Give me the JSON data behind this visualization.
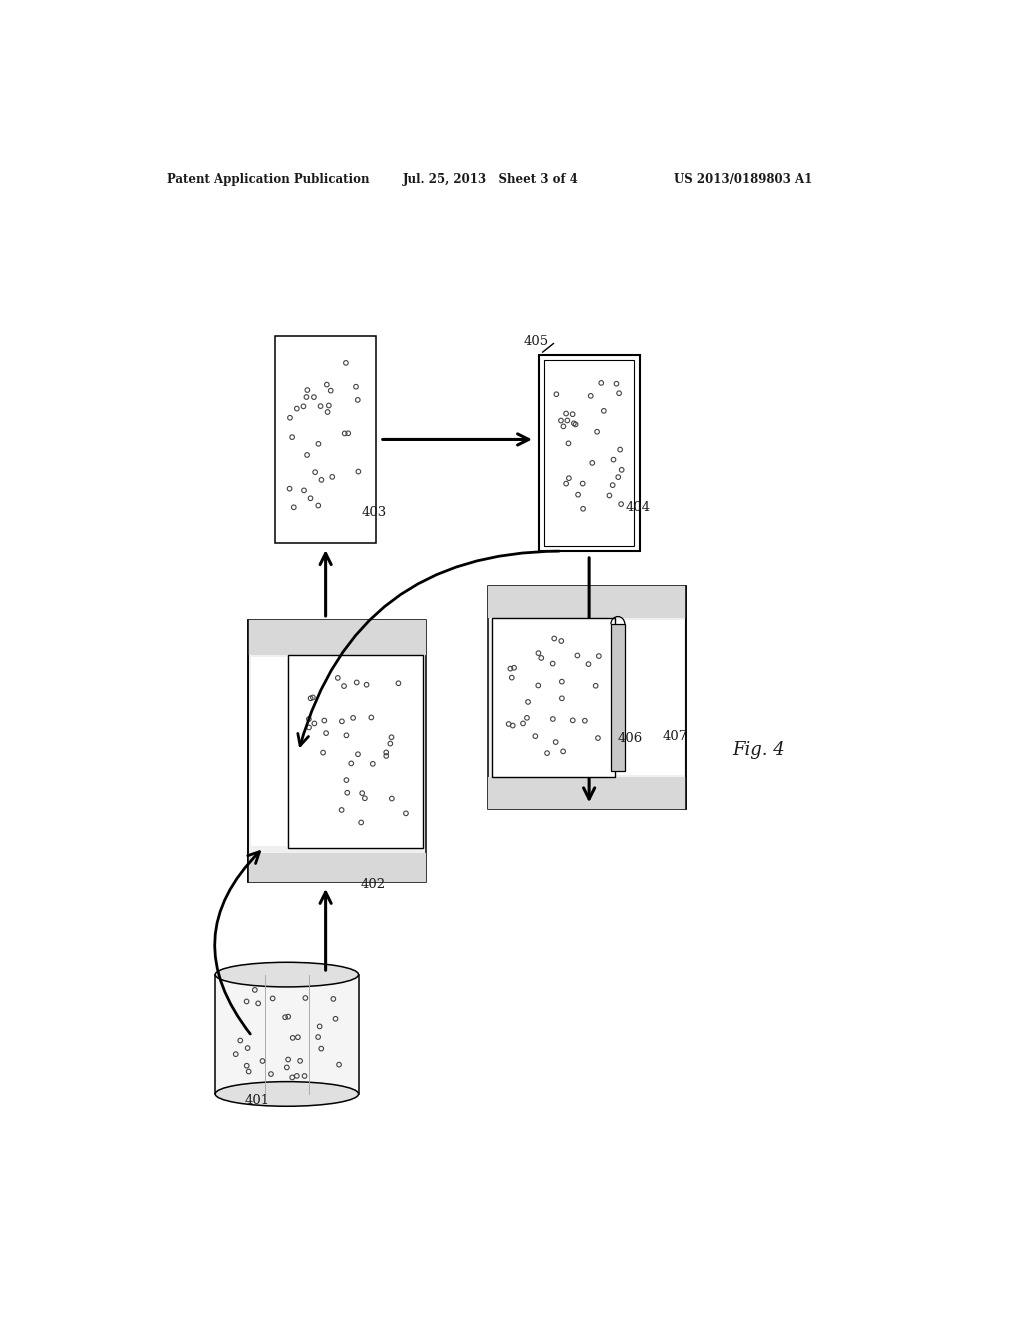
{
  "bg_color": "#ffffff",
  "header_left": "Patent Application Publication",
  "header_mid": "Jul. 25, 2013   Sheet 3 of 4",
  "header_right": "US 2013/0189803 A1",
  "fig_label": "Fig. 4",
  "dot_color": "#444444",
  "line_color": "#000000",
  "mold_fill": "#f0f0f0",
  "mold_wall_fill": "#d8d8d8",
  "cavity_fill": "#ffffff",
  "cyl_fill": "#f5f5f5",
  "cyl_ell_fill": "#e0e0e0"
}
